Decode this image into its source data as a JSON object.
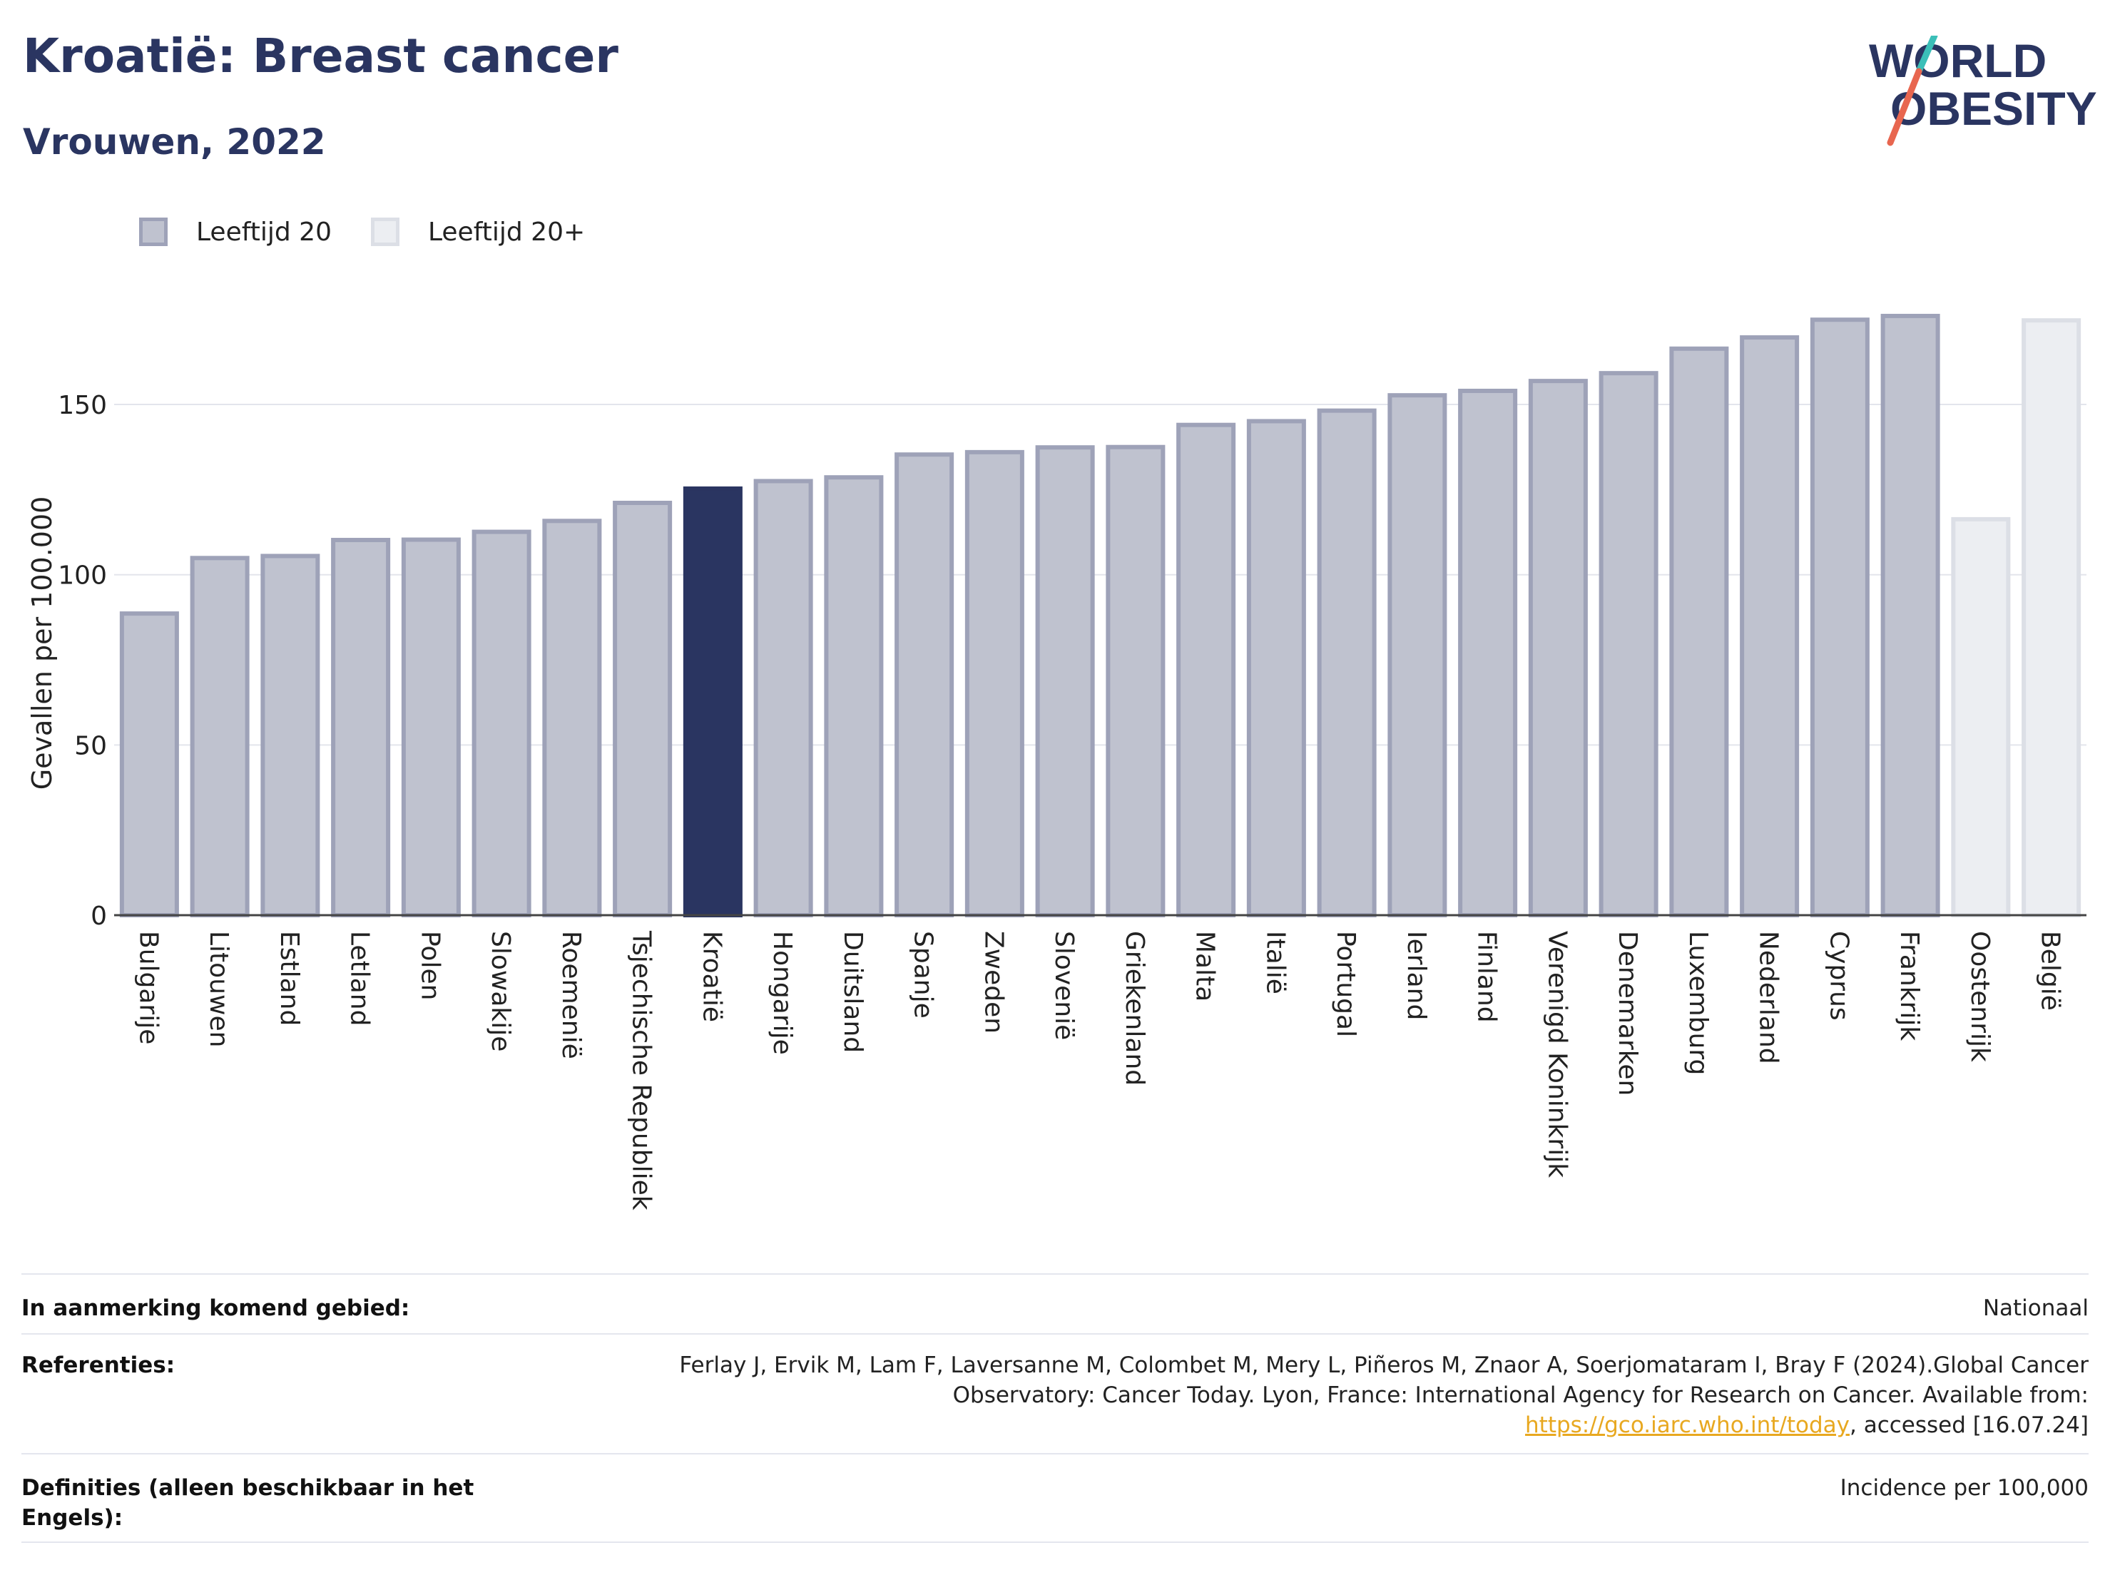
{
  "header": {
    "title": "Kroatië: Breast cancer",
    "subtitle": "Vrouwen, 2022"
  },
  "logo": {
    "line1": "WORLD",
    "line2": "OBESITY"
  },
  "colors": {
    "bar_default": "#bfc2cf",
    "bar_default_border": "#9ea2b8",
    "bar_highlight": "#2a3561",
    "bar_light": "#eceef2",
    "bar_light_border": "#dcdfe6",
    "text_primary": "#2a3561",
    "link": "#e8a820"
  },
  "legend": [
    {
      "label": "Leeftijd 20",
      "color": "#bfc2cf",
      "border": "#9ea2b8"
    },
    {
      "label": "Leeftijd 20+",
      "color": "#eceef2",
      "border": "#dcdfe6"
    }
  ],
  "chart_data": {
    "type": "bar",
    "ylabel": "Gevallen per 100.000",
    "ylim": [
      0,
      185
    ],
    "yticks": [
      0,
      50,
      100,
      150
    ],
    "grid": true,
    "categories": [
      "Bulgarije",
      "Litouwen",
      "Estland",
      "Letland",
      "Polen",
      "Slowakije",
      "Roemenië",
      "Tsjechische Republiek",
      "Kroatië",
      "Hongarije",
      "Duitsland",
      "Spanje",
      "Zweden",
      "Slovenië",
      "Griekenland",
      "Malta",
      "Italië",
      "Portugal",
      "Ierland",
      "Finland",
      "Verenigd Koninkrijk",
      "Denemarken",
      "Luxemburg",
      "Nederland",
      "Cyprus",
      "Frankrijk",
      "Oostenrijk",
      "België"
    ],
    "values": [
      88.6,
      104.9,
      105.5,
      110.2,
      110.3,
      112.6,
      115.8,
      121.1,
      125.3,
      127.5,
      128.6,
      135.3,
      136.0,
      137.4,
      137.5,
      144.0,
      145.1,
      148.2,
      152.7,
      154.0,
      156.9,
      159.2,
      166.4,
      169.7,
      174.9,
      176.0,
      116.3,
      174.7
    ],
    "group": [
      "20",
      "20",
      "20",
      "20",
      "20",
      "20",
      "20",
      "20",
      "20",
      "20",
      "20",
      "20",
      "20",
      "20",
      "20",
      "20",
      "20",
      "20",
      "20",
      "20",
      "20",
      "20",
      "20",
      "20",
      "20",
      "20",
      "20+",
      "20+"
    ],
    "highlight": "Kroatië"
  },
  "footer": {
    "rows": [
      {
        "label": "In aanmerking komend gebied:",
        "value": "Nationaal"
      },
      {
        "label": "Referenties:",
        "value_pre": "Ferlay J, Ervik M, Lam F, Laversanne M, Colombet M, Mery L, Piñeros M, Znaor A, Soerjomataram I, Bray F (2024).Global Cancer Observatory: Cancer Today. Lyon, France: International Agency for Research on Cancer. Available from: ",
        "link": "https://gco.iarc.who.int/today",
        "value_post": ", accessed [16.07.24]"
      },
      {
        "label": "Definities (alleen beschikbaar in het Engels):",
        "value": "Incidence per 100,000"
      }
    ]
  }
}
